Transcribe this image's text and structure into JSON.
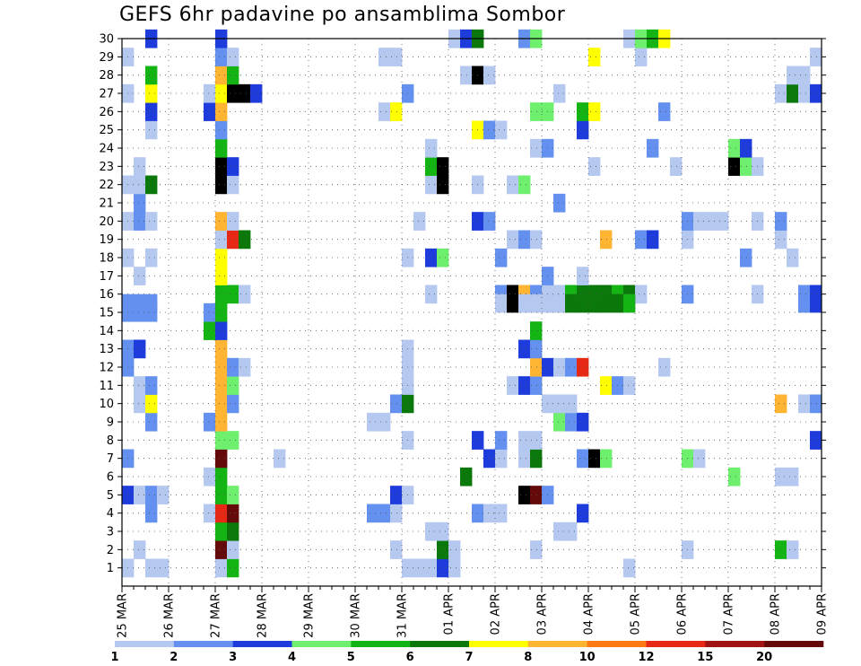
{
  "title": "GEFS 6hr padavine po ansamblima Sombor",
  "chart_data": {
    "type": "heatmap",
    "title": "GEFS 6hr padavine po ansamblima Sombor",
    "xlabel": "",
    "ylabel": "",
    "x_tick_labels": [
      "25 MAR",
      "26 MAR",
      "27 MAR",
      "28 MAR",
      "29 MAR",
      "30 MAR",
      "31 MAR",
      "01 APR",
      "02 APR",
      "03 APR",
      "04 APR",
      "05 APR",
      "06 APR",
      "07 APR",
      "08 APR",
      "09 APR"
    ],
    "x_range_days": [
      0,
      15
    ],
    "y_tick_labels": [
      "1",
      "2",
      "3",
      "4",
      "5",
      "6",
      "7",
      "8",
      "9",
      "10",
      "11",
      "12",
      "13",
      "14",
      "15",
      "16",
      "17",
      "18",
      "19",
      "20",
      "21",
      "22",
      "23",
      "24",
      "25",
      "26",
      "27",
      "28",
      "29",
      "30"
    ],
    "y_range": [
      0,
      30
    ],
    "time_step_hours": 6,
    "grid": "dotted",
    "legend_placement": "bottom",
    "legend": {
      "labels": [
        "1",
        "2",
        "3",
        "4",
        "5",
        "6",
        "7",
        "8",
        "10",
        "12",
        "15",
        "20"
      ],
      "colors": [
        "#b4c8f0",
        "#6490f0",
        "#1e3cdc",
        "#6ef06e",
        "#14b414",
        "#0a780a",
        "#ffff00",
        "#ffb432",
        "#ff7814",
        "#e62814",
        "#a01414",
        "#640a0a"
      ]
    },
    "cells": [
      [
        0,
        1,
        1
      ],
      [
        2,
        1,
        1
      ],
      [
        3,
        1,
        1
      ],
      [
        8,
        1,
        1
      ],
      [
        9,
        1,
        5
      ],
      [
        24,
        1,
        1
      ],
      [
        25,
        1,
        1
      ],
      [
        26,
        1,
        1
      ],
      [
        27,
        1,
        3
      ],
      [
        28,
        1,
        1
      ],
      [
        43,
        1,
        1
      ],
      [
        1,
        2,
        1
      ],
      [
        8,
        2,
        12
      ],
      [
        9,
        2,
        1
      ],
      [
        23,
        2,
        1
      ],
      [
        27,
        2,
        6
      ],
      [
        28,
        2,
        1
      ],
      [
        35,
        2,
        1
      ],
      [
        48,
        2,
        1
      ],
      [
        56,
        2,
        5
      ],
      [
        57,
        2,
        1
      ],
      [
        8,
        3,
        5
      ],
      [
        9,
        3,
        6
      ],
      [
        26,
        3,
        1
      ],
      [
        27,
        3,
        1
      ],
      [
        37,
        3,
        1
      ],
      [
        38,
        3,
        1
      ],
      [
        2,
        4,
        2
      ],
      [
        7,
        4,
        1
      ],
      [
        8,
        4,
        10
      ],
      [
        9,
        4,
        12
      ],
      [
        21,
        4,
        2
      ],
      [
        22,
        4,
        2
      ],
      [
        23,
        4,
        1
      ],
      [
        30,
        4,
        2
      ],
      [
        31,
        4,
        1
      ],
      [
        32,
        4,
        1
      ],
      [
        39,
        4,
        3
      ],
      [
        0,
        5,
        3
      ],
      [
        1,
        5,
        1
      ],
      [
        2,
        5,
        2
      ],
      [
        3,
        5,
        1
      ],
      [
        8,
        5,
        5
      ],
      [
        9,
        5,
        4
      ],
      [
        23,
        5,
        3
      ],
      [
        24,
        5,
        1
      ],
      [
        34,
        5,
        15
      ],
      [
        35,
        5,
        12
      ],
      [
        36,
        5,
        2
      ],
      [
        7,
        6,
        1
      ],
      [
        8,
        6,
        5
      ],
      [
        29,
        6,
        6
      ],
      [
        52,
        6,
        4
      ],
      [
        56,
        6,
        1
      ],
      [
        57,
        6,
        1
      ],
      [
        0,
        7,
        2
      ],
      [
        8,
        7,
        12
      ],
      [
        13,
        7,
        1
      ],
      [
        31,
        7,
        3
      ],
      [
        32,
        7,
        1
      ],
      [
        34,
        7,
        1
      ],
      [
        35,
        7,
        6
      ],
      [
        39,
        7,
        2
      ],
      [
        40,
        7,
        20
      ],
      [
        41,
        7,
        4
      ],
      [
        48,
        7,
        4
      ],
      [
        49,
        7,
        1
      ],
      [
        8,
        8,
        4
      ],
      [
        9,
        8,
        4
      ],
      [
        24,
        8,
        1
      ],
      [
        30,
        8,
        3
      ],
      [
        32,
        8,
        2
      ],
      [
        34,
        8,
        1
      ],
      [
        35,
        8,
        1
      ],
      [
        59,
        8,
        3
      ],
      [
        2,
        9,
        2
      ],
      [
        7,
        9,
        2
      ],
      [
        8,
        9,
        8
      ],
      [
        21,
        9,
        1
      ],
      [
        22,
        9,
        1
      ],
      [
        37,
        9,
        4
      ],
      [
        38,
        9,
        2
      ],
      [
        39,
        9,
        3
      ],
      [
        1,
        10,
        1
      ],
      [
        2,
        10,
        7
      ],
      [
        8,
        10,
        8
      ],
      [
        9,
        10,
        2
      ],
      [
        23,
        10,
        2
      ],
      [
        24,
        10,
        6
      ],
      [
        36,
        10,
        1
      ],
      [
        37,
        10,
        1
      ],
      [
        38,
        10,
        1
      ],
      [
        56,
        10,
        8
      ],
      [
        58,
        10,
        1
      ],
      [
        59,
        10,
        2
      ],
      [
        1,
        11,
        1
      ],
      [
        2,
        11,
        2
      ],
      [
        8,
        11,
        8
      ],
      [
        9,
        11,
        4
      ],
      [
        24,
        11,
        1
      ],
      [
        33,
        11,
        1
      ],
      [
        34,
        11,
        3
      ],
      [
        35,
        11,
        2
      ],
      [
        41,
        11,
        7
      ],
      [
        42,
        11,
        2
      ],
      [
        43,
        11,
        1
      ],
      [
        0,
        12,
        2
      ],
      [
        8,
        12,
        8
      ],
      [
        9,
        12,
        2
      ],
      [
        10,
        12,
        1
      ],
      [
        24,
        12,
        1
      ],
      [
        35,
        12,
        8
      ],
      [
        36,
        12,
        3
      ],
      [
        37,
        12,
        1
      ],
      [
        38,
        12,
        2
      ],
      [
        39,
        12,
        10
      ],
      [
        46,
        12,
        1
      ],
      [
        0,
        13,
        2
      ],
      [
        1,
        13,
        3
      ],
      [
        8,
        13,
        8
      ],
      [
        24,
        13,
        1
      ],
      [
        34,
        13,
        3
      ],
      [
        35,
        13,
        2
      ],
      [
        7,
        14,
        5
      ],
      [
        8,
        14,
        3
      ],
      [
        35,
        14,
        5
      ],
      [
        0,
        15,
        2
      ],
      [
        1,
        15,
        2
      ],
      [
        2,
        15,
        2
      ],
      [
        7,
        15,
        2
      ],
      [
        8,
        15,
        5
      ],
      [
        8,
        16,
        5
      ],
      [
        9,
        16,
        5
      ],
      [
        10,
        16,
        1
      ],
      [
        26,
        16,
        1
      ],
      [
        32,
        16,
        2
      ],
      [
        33,
        16,
        15
      ],
      [
        34,
        16,
        8
      ],
      [
        35,
        16,
        2
      ],
      [
        36,
        16,
        1
      ],
      [
        37,
        16,
        1
      ],
      [
        38,
        16,
        5
      ],
      [
        39,
        16,
        6
      ],
      [
        40,
        16,
        6
      ],
      [
        41,
        16,
        6
      ],
      [
        42,
        16,
        5
      ],
      [
        43,
        16,
        6
      ],
      [
        44,
        16,
        1
      ],
      [
        48,
        16,
        2
      ],
      [
        54,
        16,
        1
      ],
      [
        58,
        16,
        2
      ],
      [
        59,
        16,
        3
      ],
      [
        0,
        15.5,
        2
      ],
      [
        1,
        15.5,
        2
      ],
      [
        2,
        15.5,
        2
      ],
      [
        32,
        15.5,
        1
      ],
      [
        33,
        15.5,
        20
      ],
      [
        34,
        15.5,
        1
      ],
      [
        35,
        15.5,
        1
      ],
      [
        36,
        15.5,
        1
      ],
      [
        37,
        15.5,
        1
      ],
      [
        38,
        15.5,
        6
      ],
      [
        39,
        15.5,
        6
      ],
      [
        40,
        15.5,
        6
      ],
      [
        41,
        15.5,
        6
      ],
      [
        42,
        15.5,
        6
      ],
      [
        43,
        15.5,
        5
      ],
      [
        58,
        15.5,
        2
      ],
      [
        59,
        15.5,
        3
      ],
      [
        1,
        17,
        1
      ],
      [
        8,
        17,
        7
      ],
      [
        36,
        17,
        2
      ],
      [
        39,
        17,
        1
      ],
      [
        0,
        18,
        1
      ],
      [
        2,
        18,
        1
      ],
      [
        8,
        18,
        7
      ],
      [
        24,
        18,
        1
      ],
      [
        26,
        18,
        3
      ],
      [
        27,
        18,
        4
      ],
      [
        32,
        18,
        2
      ],
      [
        53,
        18,
        2
      ],
      [
        57,
        18,
        1
      ],
      [
        8,
        19,
        1
      ],
      [
        9,
        19,
        10
      ],
      [
        10,
        19,
        6
      ],
      [
        33,
        19,
        1
      ],
      [
        34,
        19,
        2
      ],
      [
        35,
        19,
        1
      ],
      [
        41,
        19,
        8
      ],
      [
        44,
        19,
        2
      ],
      [
        45,
        19,
        3
      ],
      [
        48,
        19,
        1
      ],
      [
        56,
        19,
        1
      ],
      [
        0,
        20,
        1
      ],
      [
        1,
        20,
        2
      ],
      [
        2,
        20,
        1
      ],
      [
        8,
        20,
        8
      ],
      [
        9,
        20,
        1
      ],
      [
        25,
        20,
        1
      ],
      [
        30,
        20,
        3
      ],
      [
        31,
        20,
        2
      ],
      [
        48,
        20,
        2
      ],
      [
        49,
        20,
        1
      ],
      [
        50,
        20,
        1
      ],
      [
        51,
        20,
        1
      ],
      [
        54,
        20,
        1
      ],
      [
        56,
        20,
        2
      ],
      [
        1,
        21,
        2
      ],
      [
        37,
        21,
        2
      ],
      [
        0,
        22,
        1
      ],
      [
        1,
        22,
        1
      ],
      [
        2,
        22,
        6
      ],
      [
        8,
        22,
        20
      ],
      [
        9,
        22,
        1
      ],
      [
        26,
        22,
        1
      ],
      [
        27,
        22,
        20
      ],
      [
        30,
        22,
        1
      ],
      [
        33,
        22,
        1
      ],
      [
        34,
        22,
        4
      ],
      [
        1,
        23,
        1
      ],
      [
        8,
        23,
        20
      ],
      [
        9,
        23,
        3
      ],
      [
        26,
        23,
        5
      ],
      [
        27,
        23,
        20
      ],
      [
        40,
        23,
        1
      ],
      [
        47,
        23,
        1
      ],
      [
        52,
        23,
        15
      ],
      [
        53,
        23,
        4
      ],
      [
        54,
        23,
        1
      ],
      [
        8,
        24,
        5
      ],
      [
        26,
        24,
        1
      ],
      [
        35,
        24,
        1
      ],
      [
        36,
        24,
        2
      ],
      [
        45,
        24,
        2
      ],
      [
        52,
        24,
        4
      ],
      [
        53,
        24,
        3
      ],
      [
        2,
        25,
        1
      ],
      [
        8,
        25,
        2
      ],
      [
        30,
        25,
        7
      ],
      [
        31,
        25,
        2
      ],
      [
        32,
        25,
        1
      ],
      [
        39,
        25,
        3
      ],
      [
        2,
        26,
        3
      ],
      [
        7,
        26,
        3
      ],
      [
        8,
        26,
        8
      ],
      [
        22,
        26,
        1
      ],
      [
        23,
        26,
        7
      ],
      [
        35,
        26,
        4
      ],
      [
        36,
        26,
        4
      ],
      [
        39,
        26,
        5
      ],
      [
        40,
        26,
        7
      ],
      [
        46,
        26,
        2
      ],
      [
        0,
        27,
        1
      ],
      [
        2,
        27,
        7
      ],
      [
        7,
        27,
        1
      ],
      [
        8,
        27,
        7
      ],
      [
        9,
        27,
        20
      ],
      [
        10,
        27,
        15
      ],
      [
        11,
        27,
        3
      ],
      [
        24,
        27,
        2
      ],
      [
        37,
        27,
        1
      ],
      [
        56,
        27,
        1
      ],
      [
        57,
        27,
        6
      ],
      [
        58,
        27,
        1
      ],
      [
        59,
        27,
        3
      ],
      [
        2,
        28,
        5
      ],
      [
        8,
        28,
        8
      ],
      [
        9,
        28,
        5
      ],
      [
        29,
        28,
        1
      ],
      [
        30,
        28,
        15
      ],
      [
        31,
        28,
        1
      ],
      [
        57,
        28,
        1
      ],
      [
        58,
        28,
        1
      ],
      [
        0,
        29,
        1
      ],
      [
        8,
        29,
        2
      ],
      [
        9,
        29,
        1
      ],
      [
        22,
        29,
        1
      ],
      [
        23,
        29,
        1
      ],
      [
        40,
        29,
        7
      ],
      [
        44,
        29,
        1
      ],
      [
        59,
        29,
        1
      ],
      [
        2,
        30,
        3
      ],
      [
        8,
        30,
        3
      ],
      [
        28,
        30,
        1
      ],
      [
        29,
        30,
        3
      ],
      [
        30,
        30,
        6
      ],
      [
        34,
        30,
        2
      ],
      [
        35,
        30,
        4
      ],
      [
        43,
        30,
        1
      ],
      [
        44,
        30,
        4
      ],
      [
        45,
        30,
        5
      ],
      [
        46,
        30,
        7
      ]
    ]
  }
}
